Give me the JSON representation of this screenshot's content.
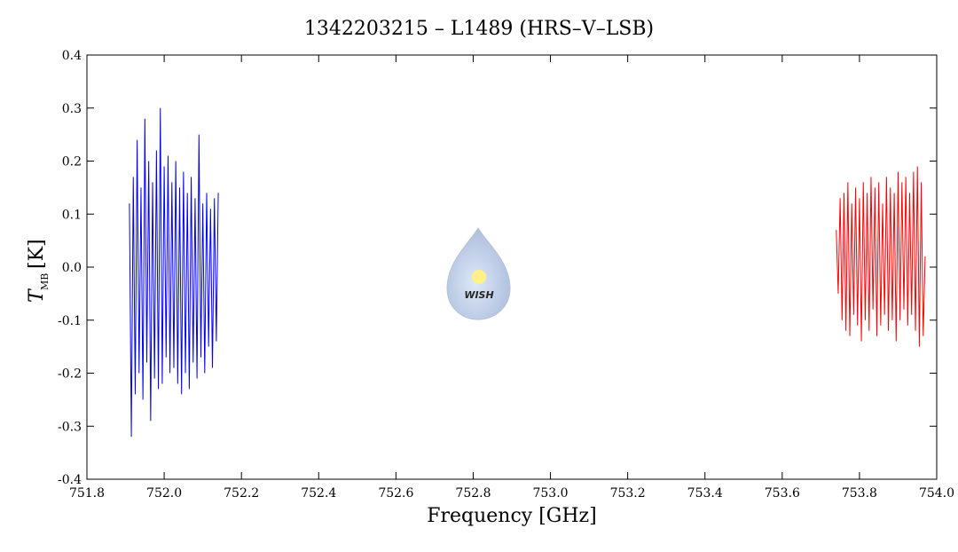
{
  "chart_data": {
    "type": "line",
    "title": "1342203215 – L1489 (HRS–V–LSB)",
    "xlabel": "Frequency [GHz]",
    "ylabel": {
      "symbol": "T",
      "subscript": "MB",
      "unit": "[K]"
    },
    "logo_text": "WISH",
    "xlim": [
      751.8,
      754.0
    ],
    "ylim": [
      -0.4,
      0.4
    ],
    "xticks": [
      751.8,
      {
        "value": 752,
        "label": "752.0"
      },
      752.2,
      752.4,
      752.6,
      752.8,
      {
        "value": 753,
        "label": "753.0"
      },
      753.2,
      753.4,
      753.6,
      753.8,
      {
        "value": 754,
        "label": "754.0"
      }
    ],
    "yticks": [
      -0.4,
      -0.3,
      -0.2,
      -0.1,
      {
        "value": 0,
        "label": "0.0"
      },
      0.1,
      0.2,
      0.3,
      0.4
    ],
    "series": [
      {
        "color": "#0000ff",
        "x": [
          751.91,
          751.915,
          751.92,
          751.925,
          751.93,
          751.935,
          751.94,
          751.945,
          751.95,
          751.955,
          751.96,
          751.965,
          751.97,
          751.975,
          751.98,
          751.985,
          751.99,
          751.995,
          752.0,
          752.005,
          752.01,
          752.015,
          752.02,
          752.025,
          752.03,
          752.035,
          752.04,
          752.045,
          752.05,
          752.055,
          752.06,
          752.065,
          752.07,
          752.075,
          752.08,
          752.085,
          752.09,
          752.095,
          752.1,
          752.105,
          752.11,
          752.115,
          752.12,
          752.125,
          752.13,
          752.135,
          752.14
        ],
        "values": [
          0.12,
          -0.32,
          0.17,
          -0.24,
          0.24,
          -0.2,
          0.15,
          -0.25,
          0.28,
          -0.18,
          0.2,
          -0.29,
          0.16,
          -0.21,
          0.22,
          -0.23,
          0.3,
          -0.22,
          0.19,
          -0.17,
          0.21,
          -0.2,
          0.16,
          -0.19,
          0.2,
          -0.22,
          0.15,
          -0.24,
          0.18,
          -0.2,
          0.14,
          -0.23,
          0.17,
          -0.18,
          0.13,
          -0.21,
          0.25,
          -0.17,
          0.12,
          -0.2,
          0.14,
          -0.15,
          0.11,
          -0.19,
          0.13,
          -0.14,
          0.14
        ]
      },
      {
        "color": "#ff0000",
        "x": [
          753.74,
          753.745,
          753.75,
          753.755,
          753.76,
          753.765,
          753.77,
          753.775,
          753.78,
          753.785,
          753.79,
          753.795,
          753.8,
          753.805,
          753.81,
          753.815,
          753.82,
          753.825,
          753.83,
          753.835,
          753.84,
          753.845,
          753.85,
          753.855,
          753.86,
          753.865,
          753.87,
          753.875,
          753.88,
          753.885,
          753.89,
          753.895,
          753.9,
          753.905,
          753.91,
          753.915,
          753.92,
          753.925,
          753.93,
          753.935,
          753.94,
          753.945,
          753.95,
          753.955,
          753.96,
          753.965,
          753.97
        ],
        "values": [
          0.07,
          -0.05,
          0.13,
          -0.1,
          0.14,
          -0.12,
          0.16,
          -0.13,
          0.12,
          -0.09,
          0.15,
          -0.11,
          0.13,
          -0.14,
          0.16,
          -0.1,
          0.14,
          -0.12,
          0.17,
          -0.08,
          0.15,
          -0.13,
          0.16,
          -0.11,
          0.12,
          -0.09,
          0.17,
          -0.12,
          0.15,
          -0.1,
          0.14,
          -0.14,
          0.18,
          -0.1,
          0.16,
          -0.08,
          0.17,
          -0.11,
          0.14,
          -0.09,
          0.18,
          -0.12,
          0.19,
          -0.15,
          0.16,
          -0.13,
          0.02
        ]
      }
    ]
  }
}
